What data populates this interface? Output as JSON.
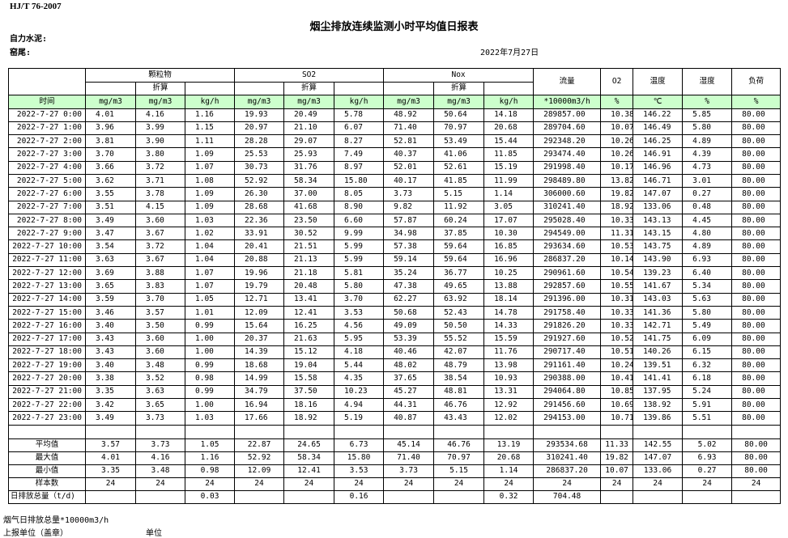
{
  "header": {
    "standard": "HJ/T  76-2007",
    "title": "烟尘排放连续监测小时平均值日报表",
    "company": "自力水泥:",
    "location": "窑尾:",
    "date": "2022年7月27日"
  },
  "table": {
    "groups": [
      {
        "label": "颗粒物",
        "sub": "折算"
      },
      {
        "label": "SO2",
        "sub": "折算"
      },
      {
        "label": "Nox",
        "sub": "折算"
      }
    ],
    "single_columns": [
      "流量",
      "O2",
      "温度",
      "湿度",
      "负荷"
    ],
    "units": [
      "时间",
      "mg/m3",
      "mg/m3",
      "kg/h",
      "mg/m3",
      "mg/m3",
      "kg/h",
      "mg/m3",
      "mg/m3",
      "kg/h",
      "*10000m3/h",
      "%",
      "℃",
      "%",
      "%"
    ],
    "rows": [
      [
        "2022-7-27 0:00",
        "4.01",
        "4.16",
        "1.16",
        "19.93",
        "20.49",
        "5.78",
        "48.92",
        "50.64",
        "14.18",
        "289857.00",
        "10.38",
        "146.22",
        "5.85",
        "80.00"
      ],
      [
        "2022-7-27 1:00",
        "3.96",
        "3.99",
        "1.15",
        "20.97",
        "21.10",
        "6.07",
        "71.40",
        "70.97",
        "20.68",
        "289704.60",
        "10.07",
        "146.49",
        "5.80",
        "80.00"
      ],
      [
        "2022-7-27 2:00",
        "3.81",
        "3.90",
        "1.11",
        "28.28",
        "29.07",
        "8.27",
        "52.81",
        "53.49",
        "15.44",
        "292348.20",
        "10.26",
        "146.25",
        "4.89",
        "80.00"
      ],
      [
        "2022-7-27 3:00",
        "3.70",
        "3.80",
        "1.09",
        "25.53",
        "25.93",
        "7.49",
        "40.37",
        "41.06",
        "11.85",
        "293474.40",
        "10.26",
        "146.91",
        "4.39",
        "80.00"
      ],
      [
        "2022-7-27 4:00",
        "3.66",
        "3.72",
        "1.07",
        "30.73",
        "31.76",
        "8.97",
        "52.01",
        "52.61",
        "15.19",
        "291998.40",
        "10.17",
        "146.96",
        "4.73",
        "80.00"
      ],
      [
        "2022-7-27 5:00",
        "3.62",
        "3.71",
        "1.08",
        "52.92",
        "58.34",
        "15.80",
        "40.17",
        "41.85",
        "11.99",
        "298489.80",
        "13.82",
        "146.71",
        "3.01",
        "80.00"
      ],
      [
        "2022-7-27 6:00",
        "3.55",
        "3.78",
        "1.09",
        "26.30",
        "37.00",
        "8.05",
        "3.73",
        "5.15",
        "1.14",
        "306000.60",
        "19.82",
        "147.07",
        "0.27",
        "80.00"
      ],
      [
        "2022-7-27 7:00",
        "3.51",
        "4.15",
        "1.09",
        "28.68",
        "41.68",
        "8.90",
        "9.82",
        "11.92",
        "3.05",
        "310241.40",
        "18.92",
        "133.06",
        "0.48",
        "80.00"
      ],
      [
        "2022-7-27 8:00",
        "3.49",
        "3.60",
        "1.03",
        "22.36",
        "23.50",
        "6.60",
        "57.87",
        "60.24",
        "17.07",
        "295028.40",
        "10.33",
        "143.13",
        "4.45",
        "80.00"
      ],
      [
        "2022-7-27 9:00",
        "3.47",
        "3.67",
        "1.02",
        "33.91",
        "30.52",
        "9.99",
        "34.98",
        "37.85",
        "10.30",
        "294549.00",
        "11.31",
        "143.15",
        "4.80",
        "80.00"
      ],
      [
        "2022-7-27 10:00",
        "3.54",
        "3.72",
        "1.04",
        "20.41",
        "21.51",
        "5.99",
        "57.38",
        "59.64",
        "16.85",
        "293634.60",
        "10.53",
        "143.75",
        "4.89",
        "80.00"
      ],
      [
        "2022-7-27 11:00",
        "3.63",
        "3.67",
        "1.04",
        "20.88",
        "21.13",
        "5.99",
        "59.14",
        "59.64",
        "16.96",
        "286837.20",
        "10.14",
        "143.90",
        "6.93",
        "80.00"
      ],
      [
        "2022-7-27 12:00",
        "3.69",
        "3.88",
        "1.07",
        "19.96",
        "21.18",
        "5.81",
        "35.24",
        "36.77",
        "10.25",
        "290961.60",
        "10.54",
        "139.23",
        "6.40",
        "80.00"
      ],
      [
        "2022-7-27 13:00",
        "3.65",
        "3.83",
        "1.07",
        "19.79",
        "20.48",
        "5.80",
        "47.38",
        "49.65",
        "13.88",
        "292857.60",
        "10.55",
        "141.67",
        "5.34",
        "80.00"
      ],
      [
        "2022-7-27 14:00",
        "3.59",
        "3.70",
        "1.05",
        "12.71",
        "13.41",
        "3.70",
        "62.27",
        "63.92",
        "18.14",
        "291396.00",
        "10.31",
        "143.03",
        "5.63",
        "80.00"
      ],
      [
        "2022-7-27 15:00",
        "3.46",
        "3.57",
        "1.01",
        "12.09",
        "12.41",
        "3.53",
        "50.68",
        "52.43",
        "14.78",
        "291758.40",
        "10.33",
        "141.36",
        "5.80",
        "80.00"
      ],
      [
        "2022-7-27 16:00",
        "3.40",
        "3.50",
        "0.99",
        "15.64",
        "16.25",
        "4.56",
        "49.09",
        "50.50",
        "14.33",
        "291826.20",
        "10.33",
        "142.71",
        "5.49",
        "80.00"
      ],
      [
        "2022-7-27 17:00",
        "3.43",
        "3.60",
        "1.00",
        "20.37",
        "21.63",
        "5.95",
        "53.39",
        "55.52",
        "15.59",
        "291927.60",
        "10.52",
        "141.75",
        "6.09",
        "80.00"
      ],
      [
        "2022-7-27 18:00",
        "3.43",
        "3.60",
        "1.00",
        "14.39",
        "15.12",
        "4.18",
        "40.46",
        "42.07",
        "11.76",
        "290717.40",
        "10.51",
        "140.26",
        "6.15",
        "80.00"
      ],
      [
        "2022-7-27 19:00",
        "3.40",
        "3.48",
        "0.99",
        "18.68",
        "19.04",
        "5.44",
        "48.02",
        "48.79",
        "13.98",
        "291161.40",
        "10.24",
        "139.51",
        "6.32",
        "80.00"
      ],
      [
        "2022-7-27 20:00",
        "3.38",
        "3.52",
        "0.98",
        "14.99",
        "15.58",
        "4.35",
        "37.65",
        "38.54",
        "10.93",
        "290388.00",
        "10.41",
        "141.41",
        "6.18",
        "80.00"
      ],
      [
        "2022-7-27 21:00",
        "3.35",
        "3.63",
        "0.99",
        "34.79",
        "37.50",
        "10.23",
        "45.27",
        "48.81",
        "13.31",
        "294064.80",
        "10.85",
        "137.95",
        "5.24",
        "80.00"
      ],
      [
        "2022-7-27 22:00",
        "3.42",
        "3.65",
        "1.00",
        "16.94",
        "18.16",
        "4.94",
        "44.31",
        "46.76",
        "12.92",
        "291456.60",
        "10.69",
        "138.92",
        "5.91",
        "80.00"
      ],
      [
        "2022-7-27 23:00",
        "3.49",
        "3.73",
        "1.03",
        "17.66",
        "18.92",
        "5.19",
        "40.87",
        "43.43",
        "12.02",
        "294153.00",
        "10.71",
        "139.86",
        "5.51",
        "80.00"
      ]
    ],
    "summary": [
      [
        "平均值",
        "3.57",
        "3.73",
        "1.05",
        "22.87",
        "24.65",
        "6.73",
        "45.14",
        "46.76",
        "13.19",
        "293534.68",
        "11.33",
        "142.55",
        "5.02",
        "80.00"
      ],
      [
        "最大值",
        "4.01",
        "4.16",
        "1.16",
        "52.92",
        "58.34",
        "15.80",
        "71.40",
        "70.97",
        "20.68",
        "310241.40",
        "19.82",
        "147.07",
        "6.93",
        "80.00"
      ],
      [
        "最小值",
        "3.35",
        "3.48",
        "0.98",
        "12.09",
        "12.41",
        "3.53",
        "3.73",
        "5.15",
        "1.14",
        "286837.20",
        "10.07",
        "133.06",
        "0.27",
        "80.00"
      ],
      [
        "样本数",
        "24",
        "24",
        "24",
        "24",
        "24",
        "24",
        "24",
        "24",
        "24",
        "24",
        "24",
        "24",
        "24",
        "24"
      ],
      [
        "日排放总量（t/d)",
        null,
        null,
        "0.03",
        null,
        null,
        "0.16",
        null,
        null,
        "0.32",
        "704.48",
        null,
        null,
        null,
        null
      ]
    ]
  },
  "footer": {
    "note": "烟气日排放总量*10000m3/h",
    "stamp": "上报单位（盖章）",
    "unit": "单位"
  }
}
